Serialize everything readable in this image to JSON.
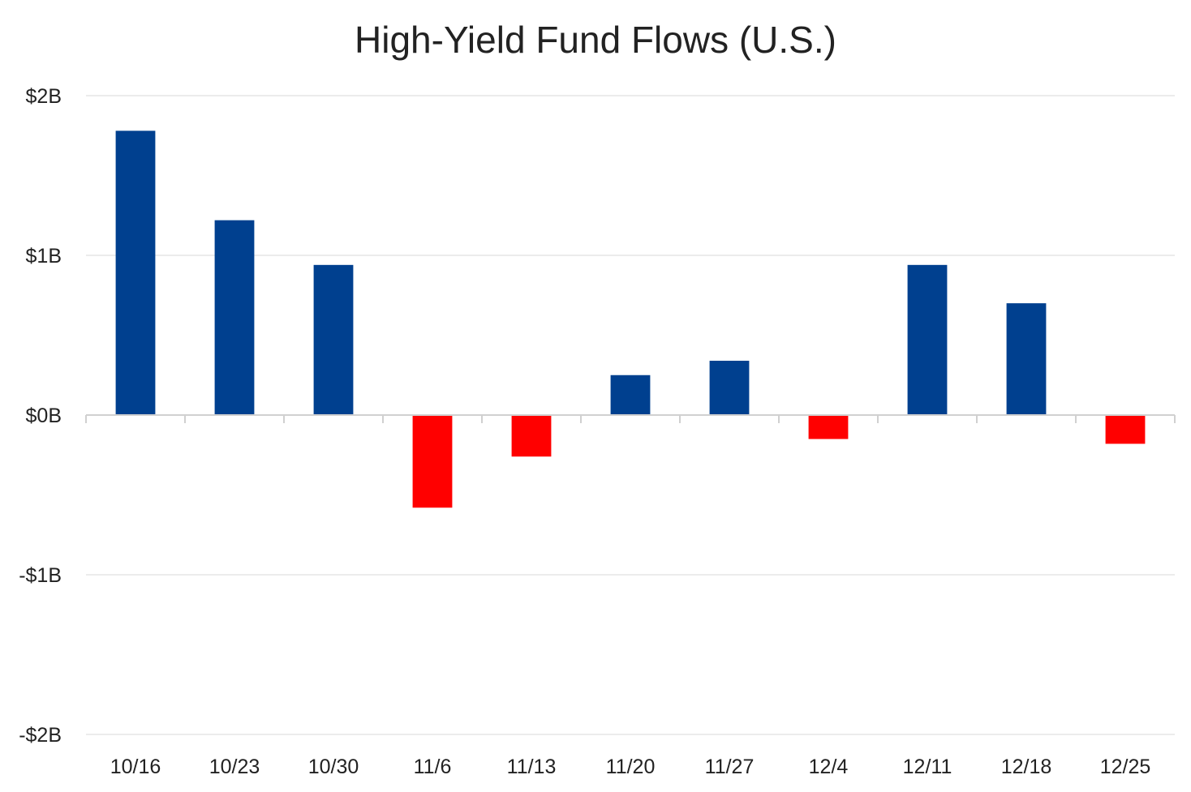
{
  "chart_data": {
    "type": "bar",
    "title": "High-Yield Fund Flows (U.S.)",
    "xlabel": "",
    "ylabel": "",
    "categories": [
      "10/16",
      "10/23",
      "10/30",
      "11/6",
      "11/13",
      "11/20",
      "11/27",
      "12/4",
      "12/11",
      "12/18",
      "12/25"
    ],
    "values": [
      1.78,
      1.22,
      0.94,
      -0.58,
      -0.26,
      0.25,
      0.34,
      -0.15,
      0.94,
      0.7,
      -0.18
    ],
    "ylim": [
      -2,
      2
    ],
    "yticks": [
      2,
      1,
      0,
      -1,
      -2
    ],
    "ytick_labels": [
      "$2B",
      "$1B",
      "$0B",
      "-$1B",
      "-$2B"
    ],
    "grid": true,
    "legend": "none",
    "colors": {
      "positive": "#00408F",
      "negative": "#FF0000",
      "grid": "#E6E6E6",
      "axis": "#D0D0D0"
    }
  }
}
